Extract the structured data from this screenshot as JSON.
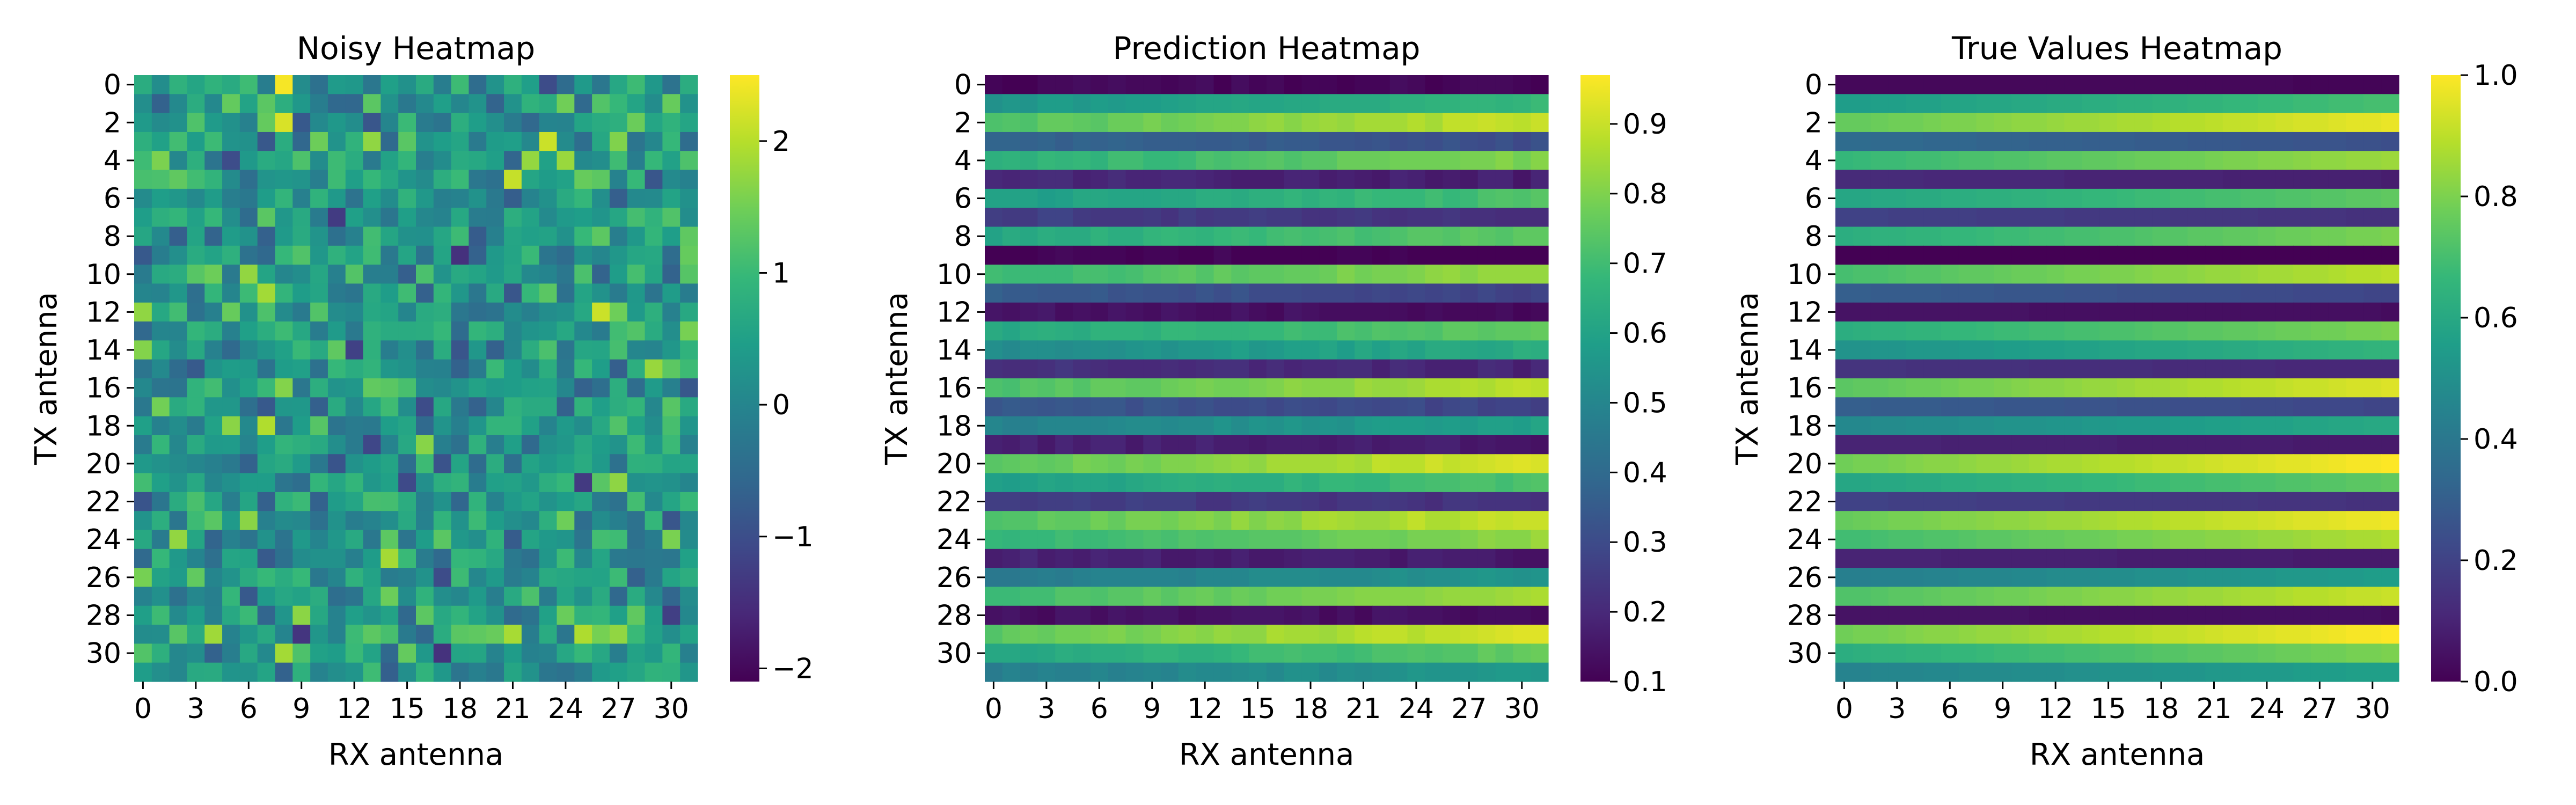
{
  "chart_data": [
    {
      "type": "heatmap",
      "title": "Noisy Heatmap",
      "xlabel": "RX antenna",
      "ylabel": "TX antenna",
      "x_ticks": [
        "0",
        "3",
        "6",
        "9",
        "12",
        "15",
        "18",
        "21",
        "24",
        "27",
        "30"
      ],
      "y_ticks": [
        "0",
        "2",
        "4",
        "6",
        "8",
        "10",
        "12",
        "14",
        "16",
        "18",
        "20",
        "22",
        "24",
        "26",
        "28",
        "30"
      ],
      "grid_size": [
        32,
        32
      ],
      "colormap": "viridis",
      "colorbar": {
        "range": [
          -2.1,
          2.5
        ],
        "ticks": [
          "2",
          "1",
          "0",
          "−1",
          "−2"
        ],
        "tick_values": [
          2,
          1,
          0,
          -1,
          -2
        ]
      },
      "data_description": "noisy",
      "value_range": [
        -2.1,
        2.5
      ]
    },
    {
      "type": "heatmap",
      "title": "Prediction Heatmap",
      "xlabel": "RX antenna",
      "ylabel": "TX antenna",
      "x_ticks": [
        "0",
        "3",
        "6",
        "9",
        "12",
        "15",
        "18",
        "21",
        "24",
        "27",
        "30"
      ],
      "y_ticks": [
        "0",
        "2",
        "4",
        "6",
        "8",
        "10",
        "12",
        "14",
        "16",
        "18",
        "20",
        "22",
        "24",
        "26",
        "28",
        "30"
      ],
      "grid_size": [
        32,
        32
      ],
      "colormap": "viridis",
      "colorbar": {
        "range": [
          0.1,
          0.97
        ],
        "ticks": [
          "0.9",
          "0.8",
          "0.7",
          "0.6",
          "0.5",
          "0.4",
          "0.3",
          "0.2",
          "0.1"
        ],
        "tick_values": [
          0.9,
          0.8,
          0.7,
          0.6,
          0.5,
          0.4,
          0.3,
          0.2,
          0.1
        ]
      },
      "data_description": "striped",
      "value_range": [
        0.1,
        0.97
      ]
    },
    {
      "type": "heatmap",
      "title": "True Values Heatmap",
      "xlabel": "RX antenna",
      "ylabel": "TX antenna",
      "x_ticks": [
        "0",
        "3",
        "6",
        "9",
        "12",
        "15",
        "18",
        "21",
        "24",
        "27",
        "30"
      ],
      "y_ticks": [
        "0",
        "2",
        "4",
        "6",
        "8",
        "10",
        "12",
        "14",
        "16",
        "18",
        "20",
        "22",
        "24",
        "26",
        "28",
        "30"
      ],
      "grid_size": [
        32,
        32
      ],
      "colormap": "viridis",
      "colorbar": {
        "range": [
          0.0,
          1.0
        ],
        "ticks": [
          "1.0",
          "0.8",
          "0.6",
          "0.4",
          "0.2",
          "0.0"
        ],
        "tick_values": [
          1.0,
          0.8,
          0.6,
          0.4,
          0.2,
          0.0
        ]
      },
      "data_description": "striped",
      "value_range": [
        0.0,
        1.0
      ]
    }
  ]
}
